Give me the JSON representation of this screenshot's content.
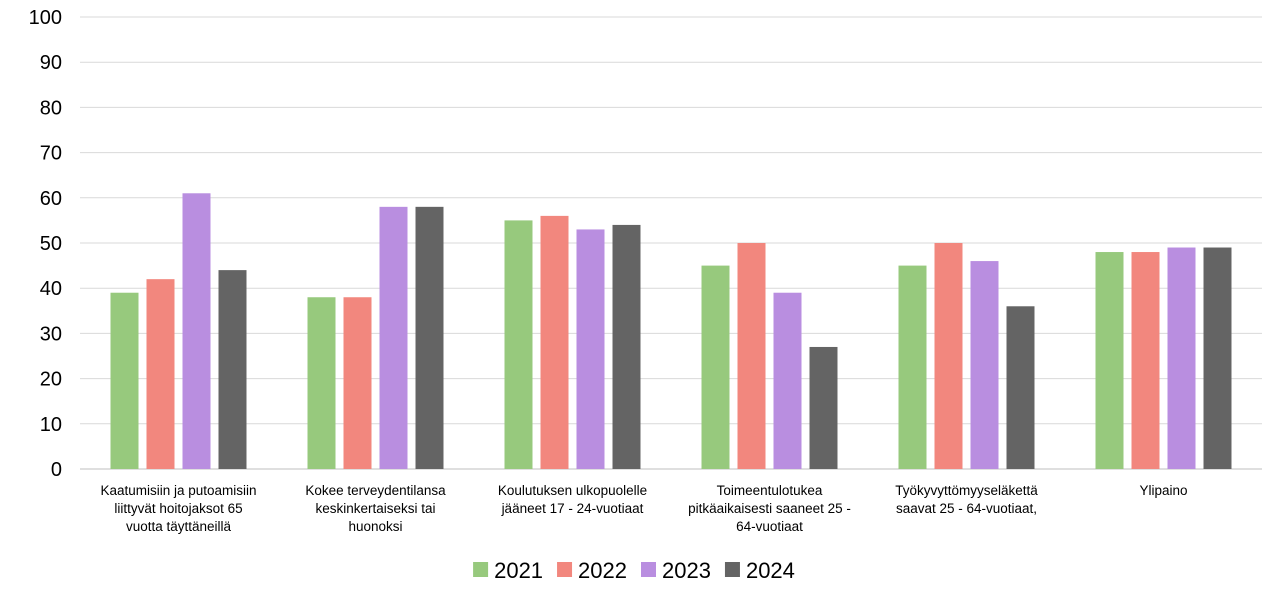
{
  "chart_data": {
    "type": "bar",
    "title": "",
    "xlabel": "",
    "ylabel": "",
    "ylim": [
      0,
      100
    ],
    "y_ticks": [
      0,
      10,
      20,
      30,
      40,
      50,
      60,
      70,
      80,
      90,
      100
    ],
    "grid": true,
    "legend_position": "bottom",
    "categories": [
      [
        "Kaatumisiin ja putoamisiin",
        "liittyvät hoitojaksot 65",
        "vuotta täyttäneillä"
      ],
      [
        "Kokee terveydentilansa",
        "keskinkertaiseksi tai",
        "huonoksi"
      ],
      [
        "Koulutuksen ulkopuolelle",
        "jääneet 17 - 24-vuotiaat"
      ],
      [
        "Toimeentulotukea",
        "pitkäaikaisesti saaneet 25 -",
        "64-vuotiaat"
      ],
      [
        "Työkyvyttömyyseläkettä",
        "saavat 25 - 64-vuotiaat,"
      ],
      [
        "Ylipaino"
      ]
    ],
    "series": [
      {
        "name": "2021",
        "color": "#97c97d",
        "values": [
          39,
          38,
          55,
          45,
          45,
          48
        ]
      },
      {
        "name": "2022",
        "color": "#f2877e",
        "values": [
          42,
          38,
          56,
          50,
          50,
          48
        ]
      },
      {
        "name": "2023",
        "color": "#b98ee0",
        "values": [
          61,
          58,
          53,
          39,
          46,
          49
        ]
      },
      {
        "name": "2024",
        "color": "#646464",
        "values": [
          44,
          58,
          54,
          27,
          36,
          49
        ]
      }
    ]
  }
}
